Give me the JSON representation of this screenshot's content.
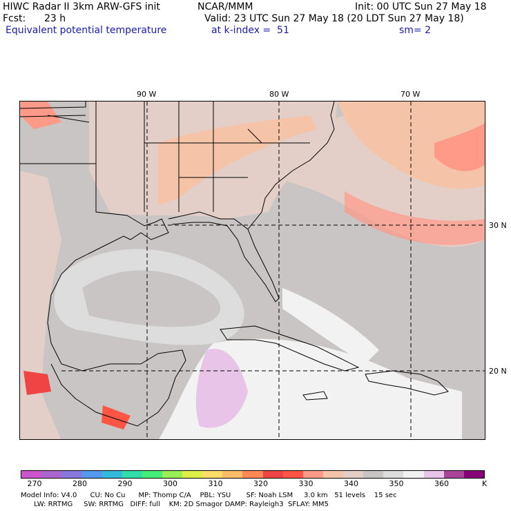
{
  "header": {
    "model_title": "HIWC Radar II 3km ARW-GFS init",
    "org": "NCAR/MMM",
    "init": "Init: 00 UTC Sun 27 May 18",
    "fcst_label": "Fcst:",
    "fcst_value": "23 h",
    "valid": "Valid: 23 UTC Sun 27 May 18 (20 LDT Sun 27 May 18)",
    "field": "Equivalent potential temperature",
    "level": "at k-index =  51",
    "smooth": "sm= 2"
  },
  "map": {
    "lon_labels": [
      "90 W",
      "80 W",
      "70 W"
    ],
    "lat_labels": [
      "30 N",
      "20 N"
    ],
    "region": "Gulf of Mexico / Southeastern US / Caribbean"
  },
  "colorbar": {
    "colors": [
      "#cc55cc",
      "#aa66cc",
      "#8877dd",
      "#5599ee",
      "#33bbdd",
      "#33ddaa",
      "#44ee77",
      "#99ee55",
      "#ddee44",
      "#ffdd66",
      "#ffbb66",
      "#ff8855",
      "#ee4444",
      "#ff5544",
      "#ff9988",
      "#f5c4a8",
      "#e3cfc8",
      "#c9c5c4",
      "#dddddd",
      "#f2f2f2",
      "#e8c4e8",
      "#aa4499",
      "#880077"
    ],
    "ticks": [
      "270",
      "280",
      "290",
      "300",
      "310",
      "320",
      "330",
      "340",
      "350",
      "360"
    ],
    "unit": "K"
  },
  "footer": {
    "line1": "Model Info: V4.0      CU: No Cu      MP: Thomp C/A    PBL: YSU       SF: Noah LSM     3.0 km   51 levels    15 sec",
    "line2": "      LW: RRTMG     SW: RRTMG   DIFF: full    KM: 2D Smagor DAMP: Rayleigh3  SFLAY: MM5"
  }
}
